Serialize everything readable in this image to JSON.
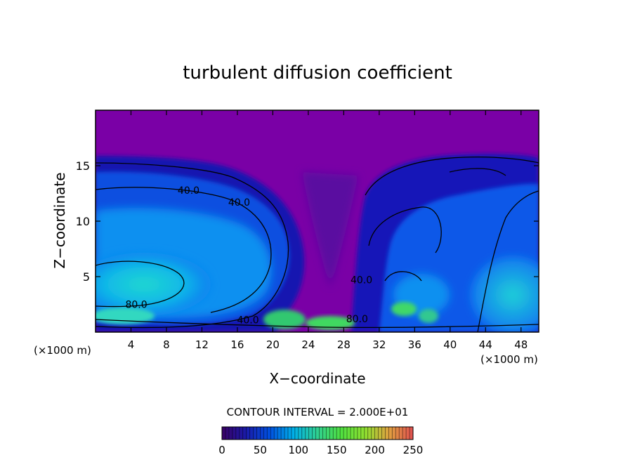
{
  "chart_data": {
    "type": "heatmap",
    "title": "turbulent diffusion coefficient",
    "xlabel": "X−coordinate",
    "ylabel": "Z−coordinate",
    "x_unit_left": "(×1000 m)",
    "x_unit_right": "(×1000 m)",
    "xlim": [
      0,
      50
    ],
    "ylim": [
      0,
      20
    ],
    "x_ticks": [
      4,
      8,
      12,
      16,
      20,
      24,
      28,
      32,
      36,
      40,
      44,
      48
    ],
    "x_tick_labels": [
      "4",
      "8",
      "12",
      "16",
      "20",
      "24",
      "28",
      "32",
      "36",
      "40",
      "44",
      "48"
    ],
    "y_ticks": [
      5,
      10,
      15
    ],
    "y_tick_labels": [
      "5",
      "10",
      "15"
    ],
    "contour_interval_text": "CONTOUR INTERVAL = 2.000E+01",
    "contour_interval": 20,
    "contour_labels": [
      {
        "text": "40.0",
        "x": 10.5,
        "z": 12.8
      },
      {
        "text": "40.0",
        "x": 16.2,
        "z": 11.7
      },
      {
        "text": "80.0",
        "x": 4.6,
        "z": 2.5
      },
      {
        "text": "40.0",
        "x": 17.2,
        "z": 1.1
      },
      {
        "text": "40.0",
        "x": 30.0,
        "z": 4.7
      },
      {
        "text": "80.0",
        "x": 29.5,
        "z": 1.2
      }
    ],
    "colorbar": {
      "min": 0,
      "max": 250,
      "ticks": [
        0,
        50,
        100,
        150,
        200,
        250
      ],
      "tick_labels": [
        "0",
        "50",
        "100",
        "150",
        "200",
        "250"
      ],
      "colors": [
        "#3a0066",
        "#1a1aa8",
        "#0050e0",
        "#00b0e8",
        "#30d090",
        "#50e040",
        "#90e030",
        "#e0a040",
        "#e05050"
      ]
    },
    "colors": {
      "top_purple": "#7a00a6",
      "deep_blue": "#1010b0",
      "mid_blue": "#1060f0",
      "cyan": "#20d0d8",
      "green": "#40e060"
    }
  }
}
